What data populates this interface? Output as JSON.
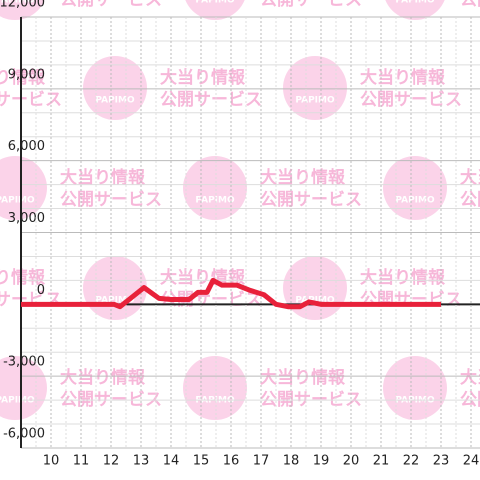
{
  "chart_data": {
    "type": "line",
    "watermark": {
      "logo": "PAPIMO",
      "line1": "大当り情報",
      "line2": "公開サービス"
    },
    "x": [
      9,
      12.1,
      12.3,
      12.6,
      13.1,
      13.6,
      14.0,
      14.6,
      14.9,
      15.2,
      15.4,
      15.7,
      16.2,
      16.6,
      17.1,
      17.5,
      17.9,
      18.3,
      18.6,
      19.0,
      20.0,
      23.0
    ],
    "series": [
      {
        "color": "#e8213a",
        "values": [
          0,
          0,
          -100,
          200,
          700,
          250,
          200,
          200,
          500,
          500,
          1000,
          800,
          800,
          600,
          400,
          0,
          -100,
          -100,
          100,
          0,
          0,
          0
        ]
      }
    ],
    "xlim": [
      9,
      24.3
    ],
    "ylim": [
      -6000,
      12000
    ],
    "xticks": [
      10,
      11,
      12,
      13,
      14,
      15,
      16,
      17,
      18,
      19,
      20,
      21,
      22,
      23,
      24
    ],
    "yticks": [
      {
        "value": -6000,
        "label": "-6,000"
      },
      {
        "value": -3000,
        "label": "-3,000"
      },
      0,
      {
        "value": 3000,
        "label": "3,000"
      },
      {
        "value": 6000,
        "label": "6,000"
      },
      {
        "value": 9000,
        "label": "9,000"
      },
      {
        "value": 12000,
        "label": "12,000"
      }
    ],
    "grid": true
  }
}
